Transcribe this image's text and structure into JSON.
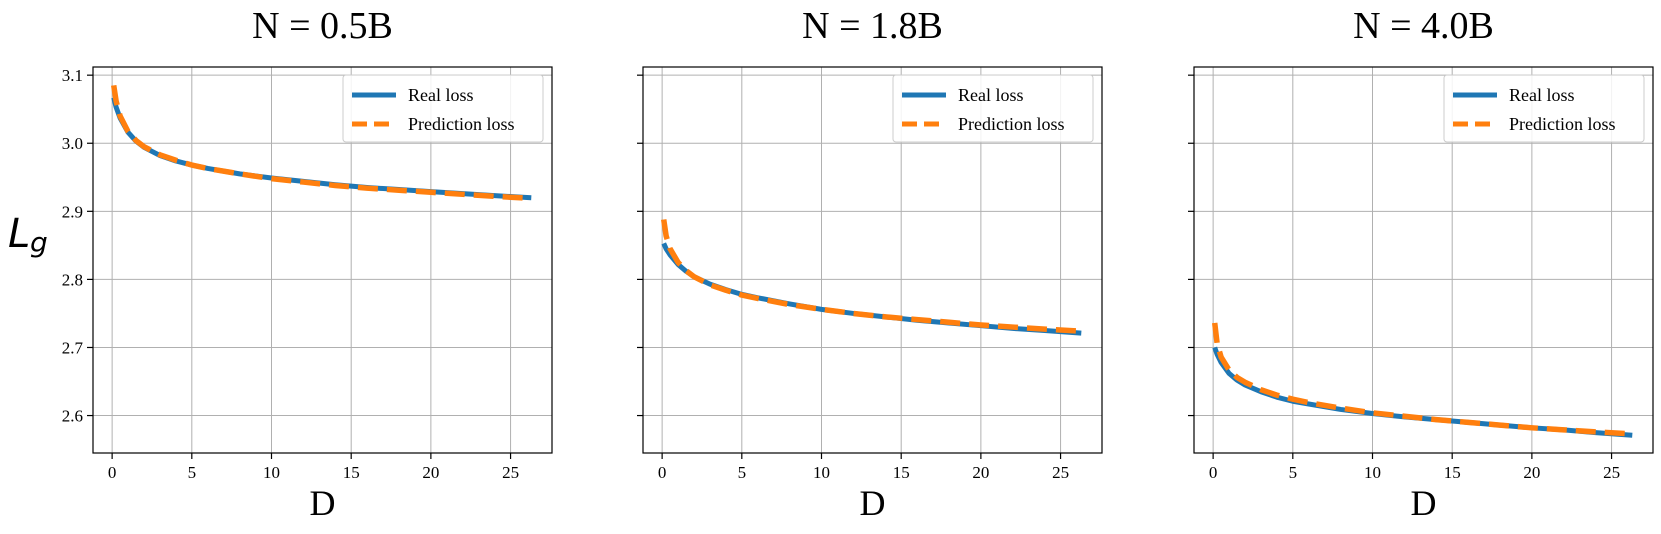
{
  "chart_data": [
    {
      "type": "line",
      "title": "N = 0.5B",
      "xlabel": "D",
      "ylabel": "L",
      "ylabel_sub": "g",
      "xlim": [
        -1.2,
        27.6
      ],
      "ylim": [
        2.545,
        3.112
      ],
      "xticks": [
        0,
        5,
        10,
        15,
        20,
        25
      ],
      "yticks": [
        2.6,
        2.7,
        2.8,
        2.9,
        3.0,
        3.1
      ],
      "ytick_labels_visible": true,
      "grid": true,
      "legend": "top-right",
      "series": [
        {
          "name": "Real loss",
          "color": "#1f77b4",
          "style": "solid",
          "x": [
            0.1,
            0.25,
            0.5,
            1,
            1.5,
            2,
            3,
            4,
            5,
            6,
            8,
            10,
            12,
            14,
            16,
            18,
            20,
            22,
            24,
            26.3
          ],
          "y": [
            3.067,
            3.053,
            3.037,
            3.016,
            3.003,
            2.994,
            2.982,
            2.974,
            2.968,
            2.963,
            2.955,
            2.949,
            2.944,
            2.939,
            2.935,
            2.932,
            2.929,
            2.926,
            2.923,
            2.92
          ]
        },
        {
          "name": "Prediction loss",
          "color": "#ff7f0e",
          "style": "dashed",
          "x": [
            0.1,
            0.25,
            0.5,
            1,
            1.5,
            2,
            3,
            4,
            5,
            6,
            8,
            10,
            12,
            14,
            16,
            18,
            20,
            22,
            24,
            26.3
          ],
          "y": [
            3.085,
            3.062,
            3.04,
            3.017,
            3.004,
            2.995,
            2.983,
            2.975,
            2.968,
            2.963,
            2.955,
            2.948,
            2.943,
            2.938,
            2.934,
            2.931,
            2.928,
            2.925,
            2.922,
            2.919
          ]
        }
      ]
    },
    {
      "type": "line",
      "title": "N = 1.8B",
      "xlabel": "D",
      "xlim": [
        -1.2,
        27.6
      ],
      "ylim": [
        2.545,
        3.112
      ],
      "xticks": [
        0,
        5,
        10,
        15,
        20,
        25
      ],
      "yticks": [
        2.6,
        2.7,
        2.8,
        2.9,
        3.0,
        3.1
      ],
      "ytick_labels_visible": false,
      "grid": true,
      "legend": "top-right",
      "series": [
        {
          "name": "Real loss",
          "color": "#1f77b4",
          "style": "solid",
          "x": [
            0.1,
            0.25,
            0.5,
            1,
            1.5,
            2,
            3,
            4,
            5,
            6,
            8,
            10,
            12,
            14,
            16,
            18,
            20,
            22,
            24,
            26.3
          ],
          "y": [
            2.853,
            2.845,
            2.836,
            2.822,
            2.812,
            2.804,
            2.793,
            2.785,
            2.778,
            2.773,
            2.764,
            2.756,
            2.75,
            2.745,
            2.74,
            2.736,
            2.732,
            2.728,
            2.725,
            2.721
          ]
        },
        {
          "name": "Prediction loss",
          "color": "#ff7f0e",
          "style": "dashed",
          "x": [
            0.1,
            0.25,
            0.5,
            1,
            1.5,
            2,
            3,
            4,
            5,
            6,
            8,
            10,
            12,
            14,
            16,
            18,
            20,
            22,
            24,
            26.3
          ],
          "y": [
            2.888,
            2.864,
            2.845,
            2.825,
            2.813,
            2.804,
            2.792,
            2.784,
            2.777,
            2.772,
            2.763,
            2.756,
            2.75,
            2.745,
            2.741,
            2.737,
            2.733,
            2.73,
            2.727,
            2.724
          ]
        }
      ]
    },
    {
      "type": "line",
      "title": "N = 4.0B",
      "xlabel": "D",
      "xlim": [
        -1.2,
        27.6
      ],
      "ylim": [
        2.545,
        3.112
      ],
      "xticks": [
        0,
        5,
        10,
        15,
        20,
        25
      ],
      "yticks": [
        2.6,
        2.7,
        2.8,
        2.9,
        3.0,
        3.1
      ],
      "ytick_labels_visible": false,
      "grid": true,
      "legend": "top-right",
      "series": [
        {
          "name": "Real loss",
          "color": "#1f77b4",
          "style": "solid",
          "x": [
            0.1,
            0.25,
            0.5,
            1,
            1.5,
            2,
            3,
            4,
            5,
            6,
            8,
            10,
            12,
            14,
            16,
            18,
            20,
            22,
            24,
            26.3
          ],
          "y": [
            2.7,
            2.69,
            2.678,
            2.662,
            2.652,
            2.645,
            2.635,
            2.627,
            2.621,
            2.617,
            2.609,
            2.603,
            2.598,
            2.594,
            2.59,
            2.586,
            2.582,
            2.579,
            2.575,
            2.571
          ]
        },
        {
          "name": "Prediction loss",
          "color": "#ff7f0e",
          "style": "dashed",
          "x": [
            0.1,
            0.25,
            0.5,
            1,
            1.5,
            2,
            3,
            4,
            5,
            6,
            8,
            10,
            12,
            14,
            16,
            18,
            20,
            22,
            24,
            26.3
          ],
          "y": [
            2.736,
            2.706,
            2.686,
            2.667,
            2.656,
            2.649,
            2.638,
            2.63,
            2.624,
            2.619,
            2.611,
            2.604,
            2.599,
            2.594,
            2.59,
            2.586,
            2.582,
            2.579,
            2.576,
            2.573
          ]
        }
      ]
    }
  ]
}
